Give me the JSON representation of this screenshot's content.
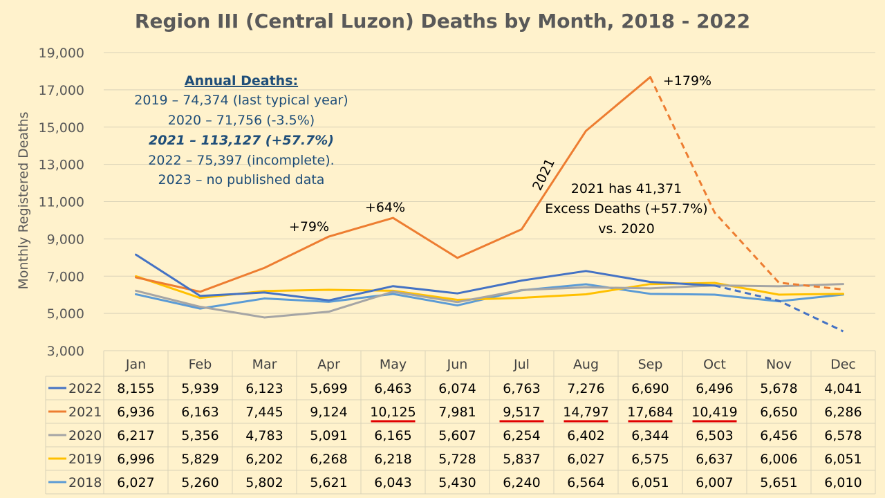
{
  "chart_data": {
    "type": "line",
    "title": "Region III (Central Luzon) Deaths by Month, 2018 - 2022",
    "ylabel": "Monthly Registered Deaths",
    "xlabel": "",
    "ylim": [
      3000,
      19000
    ],
    "yticks": [
      "3,000",
      "5,000",
      "7,000",
      "9,000",
      "11,000",
      "13,000",
      "15,000",
      "17,000",
      "19,000"
    ],
    "grid": true,
    "legend": "data-table",
    "categories": [
      "Jan",
      "Feb",
      "Mar",
      "Apr",
      "May",
      "Jun",
      "Jul",
      "Aug",
      "Sep",
      "Oct",
      "Nov",
      "Dec"
    ],
    "series": [
      {
        "name": "2022",
        "color": "#4472c4",
        "values": [
          8155,
          5939,
          6123,
          5699,
          6463,
          6074,
          6763,
          7276,
          6690,
          6496,
          5678,
          4041
        ],
        "labels": [
          "8,155",
          "5,939",
          "6,123",
          "5,699",
          "6,463",
          "6,074",
          "6,763",
          "7,276",
          "6,690",
          "6,496",
          "5,678",
          "4,041"
        ],
        "dashed_from_index": 9,
        "underlined": []
      },
      {
        "name": "2021",
        "color": "#ed7d31",
        "values": [
          6936,
          6163,
          7445,
          9124,
          10125,
          7981,
          9517,
          14797,
          17684,
          10419,
          6650,
          6286
        ],
        "labels": [
          "6,936",
          "6,163",
          "7,445",
          "9,124",
          "10,125",
          "7,981",
          "9,517",
          "14,797",
          "17,684",
          "10,419",
          "6,650",
          "6,286"
        ],
        "dashed_from_index": 8,
        "underlined": [
          4,
          6,
          7,
          8,
          9
        ]
      },
      {
        "name": "2020",
        "color": "#a5a5a5",
        "values": [
          6217,
          5356,
          4783,
          5091,
          6165,
          5607,
          6254,
          6402,
          6344,
          6503,
          6456,
          6578
        ],
        "labels": [
          "6,217",
          "5,356",
          "4,783",
          "5,091",
          "6,165",
          "5,607",
          "6,254",
          "6,402",
          "6,344",
          "6,503",
          "6,456",
          "6,578"
        ],
        "dashed_from_index": null,
        "underlined": []
      },
      {
        "name": "2019",
        "color": "#ffc000",
        "values": [
          6996,
          5829,
          6202,
          6268,
          6218,
          5728,
          5837,
          6027,
          6575,
          6637,
          6006,
          6051
        ],
        "labels": [
          "6,996",
          "5,829",
          "6,202",
          "6,268",
          "6,218",
          "5,728",
          "5,837",
          "6,027",
          "6,575",
          "6,637",
          "6,006",
          "6,051"
        ],
        "dashed_from_index": null,
        "underlined": []
      },
      {
        "name": "2018",
        "color": "#5b9bd5",
        "values": [
          6027,
          5260,
          5802,
          5621,
          6043,
          5430,
          6240,
          6564,
          6051,
          6007,
          5651,
          6010
        ],
        "labels": [
          "6,027",
          "5,260",
          "5,802",
          "5,621",
          "6,043",
          "5,430",
          "6,240",
          "6,564",
          "6,051",
          "6,007",
          "5,651",
          "6,010"
        ],
        "dashed_from_index": null,
        "underlined": []
      }
    ],
    "annotations": [
      {
        "id": "apr",
        "text": "+79%",
        "anchor": "Apr"
      },
      {
        "id": "may",
        "text": "+64%",
        "anchor": "May"
      },
      {
        "id": "sep",
        "text": "+179%",
        "anchor": "Sep"
      },
      {
        "id": "yr2021",
        "text": "2021",
        "anchor": "Jul"
      }
    ],
    "underline_color": "#e00000"
  },
  "annual_box": {
    "heading": "Annual Deaths:",
    "lines": [
      "2019 – 74,374 (last typical year)",
      "2020 – 71,756 (-3.5%)",
      "2021 – 113,127 (+57.7%)",
      "2022 – 75,397 (incomplete).",
      "2023 – no published data"
    ],
    "emphasized_index": 2,
    "color": "#1f4e79"
  },
  "excess_box": {
    "lines": [
      "2021 has 41,371",
      "Excess Deaths (+57.7%)",
      "vs. 2020"
    ]
  }
}
